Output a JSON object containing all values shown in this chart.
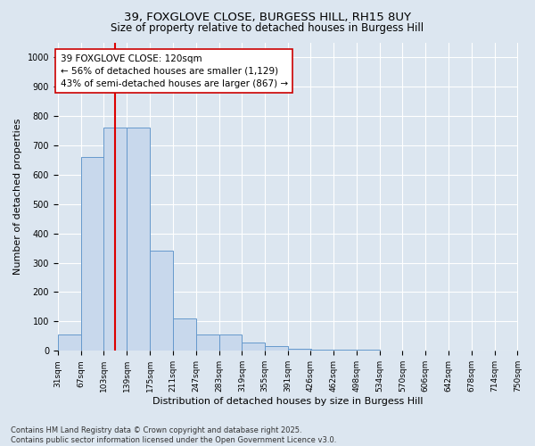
{
  "title_line1": "39, FOXGLOVE CLOSE, BURGESS HILL, RH15 8UY",
  "title_line2": "Size of property relative to detached houses in Burgess Hill",
  "xlabel": "Distribution of detached houses by size in Burgess Hill",
  "ylabel": "Number of detached properties",
  "bar_left_edges": [
    31,
    67,
    103,
    139,
    175,
    211,
    247,
    283,
    319,
    355,
    391,
    426,
    462,
    498,
    534,
    570,
    606,
    642,
    678,
    714
  ],
  "bar_heights": [
    55,
    660,
    760,
    760,
    340,
    110,
    55,
    55,
    28,
    15,
    8,
    5,
    4,
    3,
    2,
    1,
    0,
    0,
    0,
    0
  ],
  "bin_width": 36,
  "bar_color": "#c8d8ec",
  "bar_edge_color": "#6699cc",
  "x_tick_labels": [
    "31sqm",
    "67sqm",
    "103sqm",
    "139sqm",
    "175sqm",
    "211sqm",
    "247sqm",
    "283sqm",
    "319sqm",
    "355sqm",
    "391sqm",
    "426sqm",
    "462sqm",
    "498sqm",
    "534sqm",
    "570sqm",
    "606sqm",
    "642sqm",
    "678sqm",
    "714sqm",
    "750sqm"
  ],
  "ylim": [
    0,
    1050
  ],
  "yticks": [
    0,
    100,
    200,
    300,
    400,
    500,
    600,
    700,
    800,
    900,
    1000
  ],
  "property_value": 120,
  "red_line_color": "#dd0000",
  "annotation_text": "39 FOXGLOVE CLOSE: 120sqm\n← 56% of detached houses are smaller (1,129)\n43% of semi-detached houses are larger (867) →",
  "annotation_box_color": "#ffffff",
  "annotation_box_edge_color": "#cc0000",
  "footer_line1": "Contains HM Land Registry data © Crown copyright and database right 2025.",
  "footer_line2": "Contains public sector information licensed under the Open Government Licence v3.0.",
  "background_color": "#dce6f0",
  "plot_background_color": "#dce6f0",
  "grid_color": "#ffffff",
  "title_fontsize": 9.5,
  "subtitle_fontsize": 8.5,
  "axis_label_fontsize": 8,
  "tick_fontsize": 6.5,
  "footer_fontsize": 6,
  "annotation_fontsize": 7.5
}
